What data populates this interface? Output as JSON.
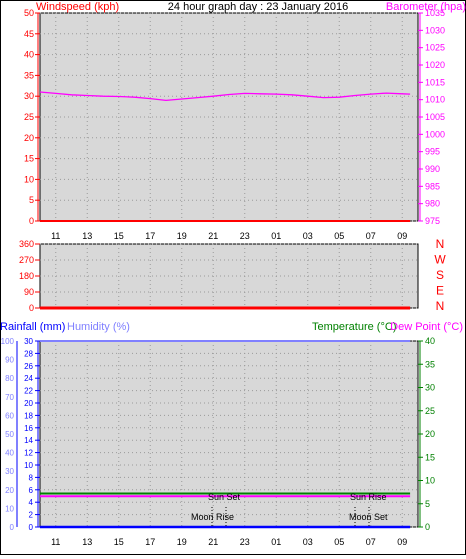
{
  "header": {
    "windspeed_label": "Windspeed (kph)",
    "title": "24 hour graph day : 23 January 2016",
    "barometer_label": "Barometer (hpa)"
  },
  "colors": {
    "windspeed": "#ff0000",
    "barometer": "#ff00ff",
    "direction": "#ff0000",
    "rainfall": "#0000ff",
    "humidity": "#8080ff",
    "temperature": "#008000",
    "dewpoint": "#ff00ff",
    "plot_bg": "#d8d8d8"
  },
  "time_ticks": [
    "11",
    "13",
    "15",
    "17",
    "19",
    "21",
    "23",
    "01",
    "03",
    "05",
    "07",
    "09"
  ],
  "compass_letters": [
    "N",
    "W",
    "S",
    "E",
    "N"
  ],
  "bottom_header": {
    "rainfall_label": "Rainfall (mm)",
    "humidity_label": "Humidity (%)",
    "temperature_label": "Temperature (°C)",
    "dewpoint_label": "Dew Point (°C)"
  },
  "events": {
    "sun_set": "Sun Set",
    "sun_rise": "Sun Rise",
    "moon_rise": "Moon Rise",
    "moon_set": "Moon Set"
  },
  "chart_data": [
    {
      "type": "line",
      "title": "24 hour graph day : 23 January 2016",
      "x_ticks": [
        "11",
        "13",
        "15",
        "17",
        "19",
        "21",
        "23",
        "01",
        "03",
        "05",
        "07",
        "09"
      ],
      "ylabel": "Windspeed (kph)",
      "ylim": [
        0,
        50
      ],
      "y_ticks": [
        0,
        5,
        10,
        15,
        20,
        25,
        30,
        35,
        40,
        45,
        50
      ],
      "y2label": "Barometer (hpa)",
      "y2lim": [
        975,
        1035
      ],
      "y2_ticks": [
        975,
        980,
        985,
        990,
        995,
        1000,
        1005,
        1010,
        1015,
        1020,
        1025,
        1030,
        1035
      ],
      "grid": true,
      "series": [
        {
          "name": "Windspeed (kph)",
          "axis": "left",
          "x": [
            10,
            33.5
          ],
          "values": [
            0,
            0
          ]
        },
        {
          "name": "Barometer (hpa)",
          "axis": "right",
          "x": [
            10,
            11,
            12,
            13,
            14,
            15,
            16,
            17,
            18,
            19,
            20,
            21,
            22,
            23,
            24,
            25,
            26,
            27,
            28,
            29,
            30,
            31,
            32,
            33,
            33.5
          ],
          "values": [
            1012.2,
            1011.8,
            1011.4,
            1011.2,
            1011.0,
            1010.9,
            1010.7,
            1010.3,
            1009.8,
            1010.2,
            1010.6,
            1011.0,
            1011.5,
            1011.8,
            1011.7,
            1011.6,
            1011.4,
            1011.0,
            1010.6,
            1010.7,
            1011.2,
            1011.6,
            1011.9,
            1011.7,
            1011.6
          ]
        }
      ]
    },
    {
      "type": "line",
      "x_ticks": [
        "11",
        "13",
        "15",
        "17",
        "19",
        "21",
        "23",
        "01",
        "03",
        "05",
        "07",
        "09"
      ],
      "ylim": [
        0,
        360
      ],
      "y_ticks": [
        0,
        90,
        180,
        270,
        360
      ],
      "y2_ticks": [
        "N",
        "E",
        "S",
        "W",
        "N"
      ],
      "grid": true,
      "series": [
        {
          "name": "Wind direction",
          "axis": "left",
          "x": [
            10,
            33.5
          ],
          "values": [
            0,
            0
          ]
        }
      ]
    },
    {
      "type": "line",
      "x_ticks": [
        "11",
        "13",
        "15",
        "17",
        "19",
        "21",
        "23",
        "01",
        "03",
        "05",
        "07",
        "09"
      ],
      "y_outer_label": "Humidity (%)",
      "y_outer_lim": [
        0,
        100
      ],
      "y_outer_ticks": [
        0,
        10,
        20,
        30,
        40,
        50,
        60,
        70,
        80,
        90,
        100
      ],
      "ylabel": "Rainfall (mm)",
      "ylim": [
        0,
        30
      ],
      "y_ticks": [
        0,
        2,
        4,
        6,
        8,
        10,
        12,
        14,
        16,
        18,
        20,
        22,
        24,
        26,
        28,
        30
      ],
      "y2label": "Temperature (°C)",
      "y2lim": [
        0,
        40
      ],
      "y2_ticks": [
        0,
        5,
        10,
        15,
        20,
        25,
        30,
        35,
        40
      ],
      "grid": true,
      "series": [
        {
          "name": "Rainfall (mm)",
          "axis": "left",
          "x": [
            10,
            33.5
          ],
          "values": [
            0,
            0
          ]
        },
        {
          "name": "Humidity (%)",
          "axis": "outer",
          "x": [
            10,
            33.5
          ],
          "values": [
            100,
            100
          ]
        },
        {
          "name": "Temperature (°C)",
          "axis": "right",
          "x": [
            10,
            33.5
          ],
          "values": [
            7.2,
            7.2
          ]
        },
        {
          "name": "Dew Point (°C)",
          "axis": "right",
          "x": [
            10,
            33.5
          ],
          "values": [
            6.6,
            6.6
          ]
        }
      ],
      "annotations": [
        "Sun Set",
        "Sun Rise",
        "Moon Rise",
        "Moon Set"
      ]
    }
  ]
}
